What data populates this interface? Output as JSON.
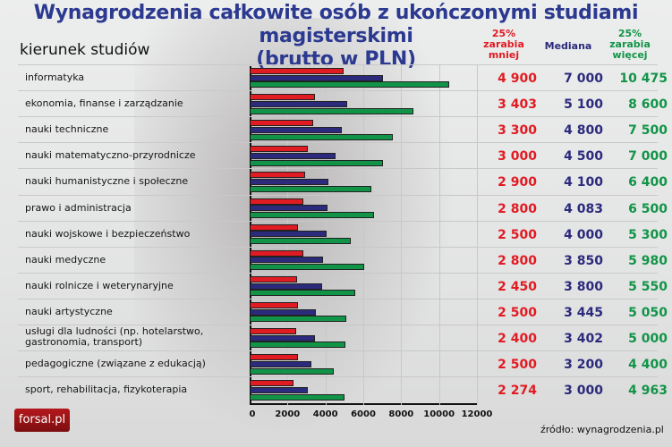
{
  "title_line1": "Wynagrodzenia całkowite osób z ukończonymi studiami magisterskimi",
  "title_line2": "(brutto w PLN)",
  "row_header": "kierunek studiów",
  "columns": {
    "low": {
      "line1": "25%",
      "line2": "zarabia",
      "line3": "mniej",
      "color": "#e11b22"
    },
    "median": {
      "label": "Mediana",
      "color": "#2b2a7c"
    },
    "high": {
      "line1": "25%",
      "line2": "zarabia",
      "line3": "więcej",
      "color": "#119447"
    }
  },
  "rows": [
    {
      "label": "informatyka",
      "low": "4 900",
      "median": "7 000",
      "high": "10 475"
    },
    {
      "label": "ekonomia, finanse i zarządzanie",
      "low": "3 403",
      "median": "5 100",
      "high": "8 600"
    },
    {
      "label": "nauki techniczne",
      "low": "3 300",
      "median": "4 800",
      "high": "7 500"
    },
    {
      "label": "nauki matematyczno-przyrodnicze",
      "low": "3 000",
      "median": "4 500",
      "high": "7 000"
    },
    {
      "label": "nauki humanistyczne i społeczne",
      "low": "2 900",
      "median": "4 100",
      "high": "6 400"
    },
    {
      "label": "prawo i administracja",
      "low": "2 800",
      "median": "4 083",
      "high": "6 500"
    },
    {
      "label": "nauki wojskowe i bezpieczeństwo",
      "low": "2 500",
      "median": "4 000",
      "high": "5 300"
    },
    {
      "label": "nauki medyczne",
      "low": "2 800",
      "median": "3 850",
      "high": "5 980"
    },
    {
      "label": "nauki rolnicze i weterynaryjne",
      "low": "2 450",
      "median": "3 800",
      "high": "5 550"
    },
    {
      "label": "nauki artystyczne",
      "low": "2 500",
      "median": "3 445",
      "high": "5 050"
    },
    {
      "label": "usługi dla ludności (np. hotelarstwo,",
      "label2": "gastronomia, transport)",
      "low": "2 400",
      "median": "3 402",
      "high": "5 000"
    },
    {
      "label": "pedagogiczne (związane z edukacją)",
      "low": "2 500",
      "median": "3 200",
      "high": "4 400"
    },
    {
      "label": "sport, rehabilitacja, fizykoterapia",
      "low": "2 274",
      "median": "3 000",
      "high": "4 963"
    }
  ],
  "x_ticks": [
    "0",
    "2000",
    "4000",
    "6000",
    "8000",
    "10000",
    "12000"
  ],
  "logo": "forsal.pl",
  "source": "źródło: wynagrodzenia.pl",
  "chart_data": {
    "type": "bar",
    "orientation": "horizontal",
    "title": "Wynagrodzenia całkowite osób z ukończonymi studiami magisterskimi (brutto w PLN)",
    "xlabel": "",
    "ylabel": "kierunek studiów",
    "xlim": [
      0,
      12000
    ],
    "grid": true,
    "categories": [
      "informatyka",
      "ekonomia, finanse i zarządzanie",
      "nauki techniczne",
      "nauki matematyczno-przyrodnicze",
      "nauki humanistyczne i społeczne",
      "prawo i administracja",
      "nauki wojskowe i bezpieczeństwo",
      "nauki medyczne",
      "nauki rolnicze i weterynaryjne",
      "nauki artystyczne",
      "usługi dla ludności (np. hotelarstwo, gastronomia, transport)",
      "pedagogiczne (związane z edukacją)",
      "sport, rehabilitacja, fizykoterapia"
    ],
    "series": [
      {
        "name": "25% zarabia mniej",
        "color": "#e11b22",
        "values": [
          4900,
          3403,
          3300,
          3000,
          2900,
          2800,
          2500,
          2800,
          2450,
          2500,
          2400,
          2500,
          2274
        ]
      },
      {
        "name": "Mediana",
        "color": "#2b2a7c",
        "values": [
          7000,
          5100,
          4800,
          4500,
          4100,
          4083,
          4000,
          3850,
          3800,
          3445,
          3402,
          3200,
          3000
        ]
      },
      {
        "name": "25% zarabia więcej",
        "color": "#119447",
        "values": [
          10475,
          8600,
          7500,
          7000,
          6400,
          6500,
          5300,
          5980,
          5550,
          5050,
          5000,
          4400,
          4963
        ]
      }
    ],
    "x_ticks": [
      0,
      2000,
      4000,
      6000,
      8000,
      10000,
      12000
    ]
  }
}
